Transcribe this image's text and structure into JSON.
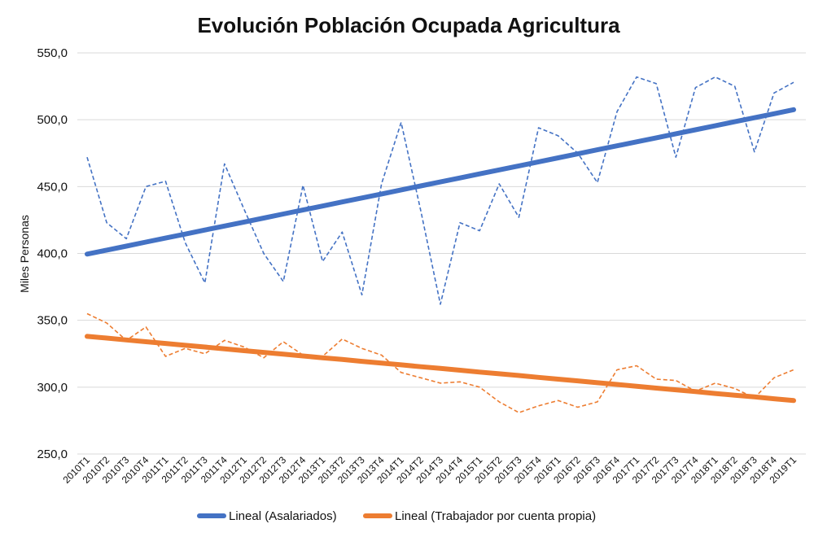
{
  "chart_data": {
    "type": "line",
    "title": "Evolución Población Ocupada Agricultura",
    "ylabel": "Miles Personas",
    "xlabel": "",
    "ylim": [
      250,
      550
    ],
    "yticks": [
      "250,0",
      "300,0",
      "350,0",
      "400,0",
      "450,0",
      "500,0",
      "550,0"
    ],
    "ytick_values": [
      250,
      300,
      350,
      400,
      450,
      500,
      550
    ],
    "grid": "horizontal",
    "legend_position": "bottom",
    "categories": [
      "2010T1",
      "2010T2",
      "2010T3",
      "2010T4",
      "2011T1",
      "2011T2",
      "2011T3",
      "2011T4",
      "2012T1",
      "2012T2",
      "2012T3",
      "2012T4",
      "2013T1",
      "2013T2",
      "2013T3",
      "2013T4",
      "2014T1",
      "2014T2",
      "2014T3",
      "2014T4",
      "2015T1",
      "2015T2",
      "2015T3",
      "2015T4",
      "2016T1",
      "2016T2",
      "2016T3",
      "2016T4",
      "2017T1",
      "2017T2",
      "2017T3",
      "2017T4",
      "2018T1",
      "2018T2",
      "2018T3",
      "2018T4",
      "2019T1"
    ],
    "series": [
      {
        "style": "dashed",
        "color": "#4472C4",
        "values": [
          472,
          423,
          411,
          450,
          454,
          408,
          378,
          467,
          433,
          400,
          379,
          451,
          394,
          416,
          369,
          452,
          498,
          432,
          362,
          423,
          417,
          452,
          427,
          494,
          488,
          475,
          453,
          506,
          532,
          527,
          472,
          524,
          532,
          525,
          476,
          520,
          528
        ]
      },
      {
        "style": "dashed",
        "color": "#ED7D31",
        "values": [
          355,
          348,
          335,
          345,
          323,
          329,
          325,
          335,
          330,
          322,
          334,
          324,
          323,
          336,
          329,
          324,
          311,
          307,
          303,
          304,
          300,
          289,
          281,
          286,
          290,
          285,
          289,
          313,
          316,
          306,
          305,
          297,
          303,
          299,
          292,
          307,
          313
        ]
      },
      {
        "name": "Lineal (Asalariados)",
        "style": "trend",
        "color": "#4472C4",
        "values": [
          399.5,
          402.5,
          405.5,
          408.5,
          411.5,
          414.5,
          417.5,
          420.5,
          423.5,
          426.5,
          429.5,
          432.5,
          435.5,
          438.5,
          441.5,
          444.5,
          447.5,
          450.5,
          453.5,
          456.5,
          459.5,
          462.5,
          465.5,
          468.5,
          471.5,
          474.5,
          477.5,
          480.5,
          483.5,
          486.5,
          489.5,
          492.5,
          495.5,
          498.5,
          501.5,
          504.5,
          507.5
        ]
      },
      {
        "name": "Lineal (Trabajador por cuenta propia)",
        "style": "trend",
        "color": "#ED7D31",
        "values": [
          338,
          336.7,
          335.3,
          334,
          332.7,
          331.3,
          330,
          328.7,
          327.3,
          326,
          324.7,
          323.3,
          322,
          320.7,
          319.3,
          318,
          316.7,
          315.3,
          314,
          312.7,
          311.3,
          310,
          308.7,
          307.3,
          306,
          304.7,
          303.3,
          302,
          300.7,
          299.3,
          298,
          296.7,
          295.3,
          294,
          292.7,
          291.3,
          290
        ]
      }
    ]
  }
}
